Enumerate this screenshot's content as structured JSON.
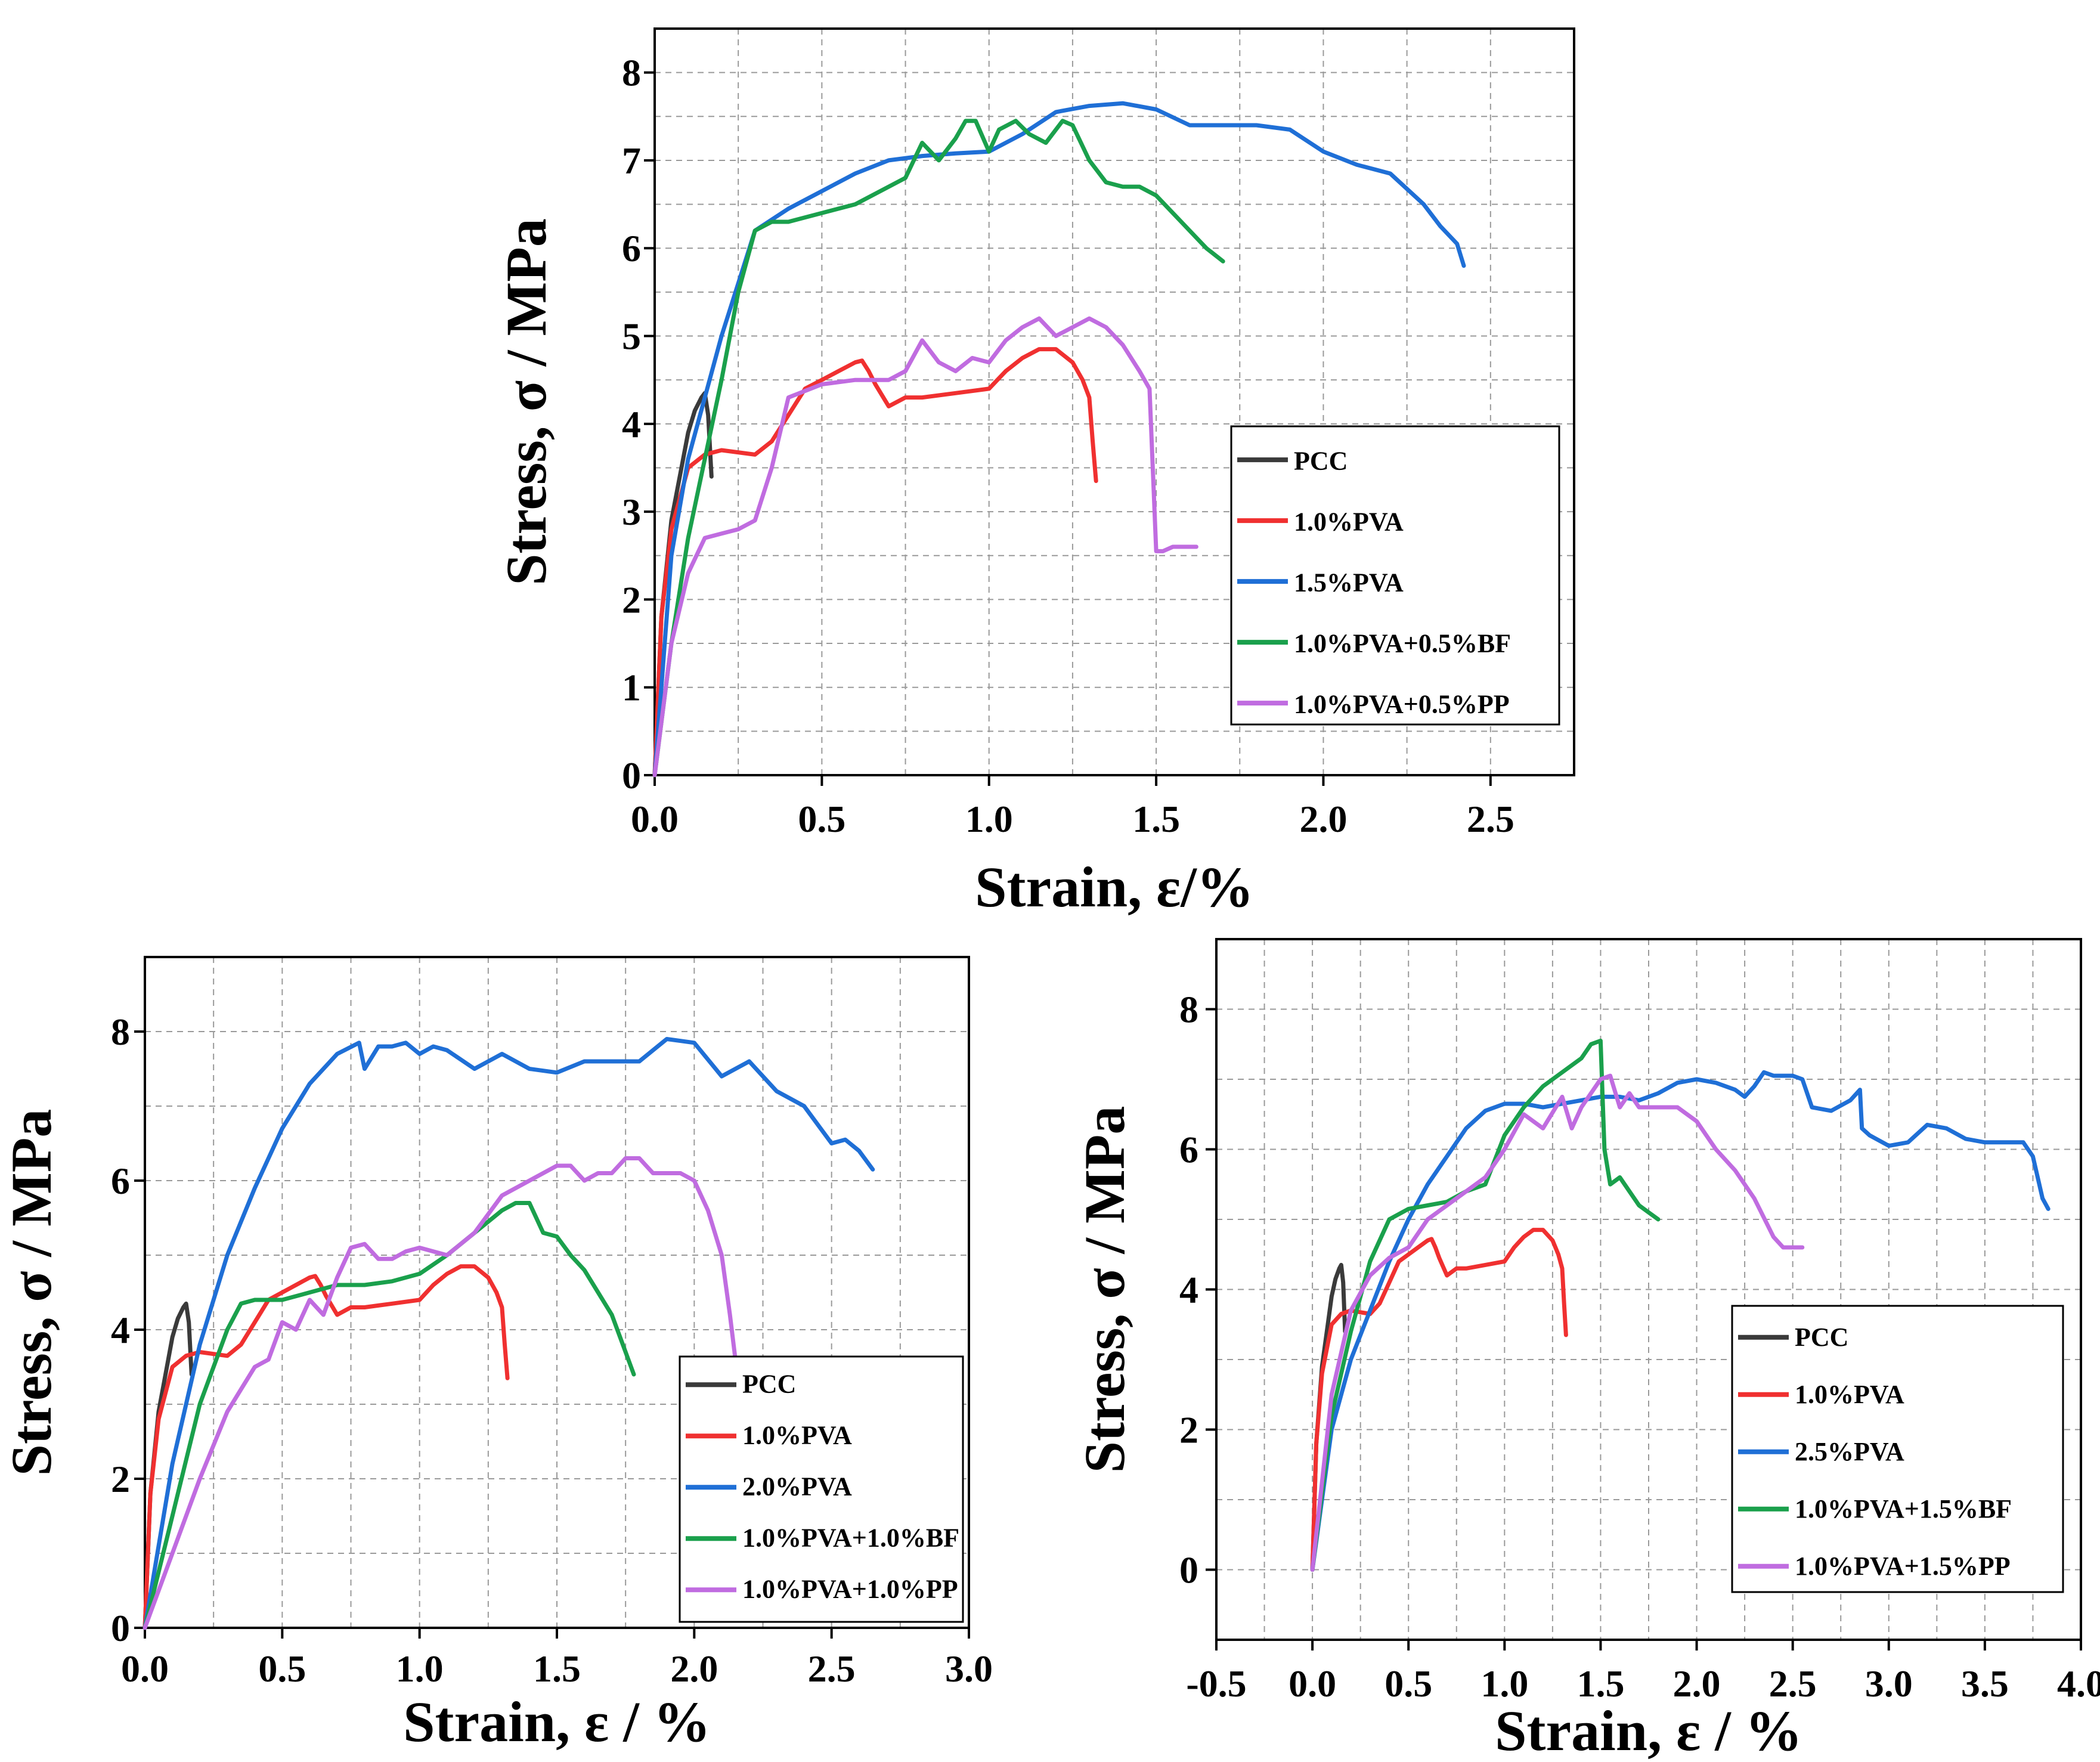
{
  "chart_data": [
    {
      "type": "line",
      "xlabel": "Strain, ε/%",
      "ylabel": "Stress, σ / MPa",
      "xlim": [
        0,
        2.75
      ],
      "ylim": [
        0,
        8.5
      ],
      "xticks": [
        "0.0",
        "0.5",
        "1.0",
        "1.5",
        "2.0",
        "2.5"
      ],
      "yticks": [
        "0",
        "1",
        "2",
        "3",
        "4",
        "5",
        "6",
        "7",
        "8"
      ],
      "grid": true,
      "legend_position": "bottom-right",
      "series": [
        {
          "name": "PCC",
          "color": "#3a3a3a",
          "x": [
            0,
            0.02,
            0.05,
            0.08,
            0.1,
            0.12,
            0.14,
            0.15,
            0.16,
            0.17
          ],
          "y": [
            0,
            1.8,
            2.9,
            3.5,
            3.9,
            4.15,
            4.3,
            4.35,
            4.1,
            3.4
          ]
        },
        {
          "name": "1.0%PVA",
          "color": "#f03030",
          "x": [
            0,
            0.02,
            0.05,
            0.1,
            0.15,
            0.2,
            0.3,
            0.35,
            0.4,
            0.45,
            0.5,
            0.55,
            0.6,
            0.62,
            0.64,
            0.66,
            0.7,
            0.75,
            0.8,
            0.9,
            1.0,
            1.05,
            1.1,
            1.15,
            1.2,
            1.25,
            1.28,
            1.3,
            1.31,
            1.32
          ],
          "y": [
            0,
            1.8,
            2.8,
            3.5,
            3.65,
            3.7,
            3.65,
            3.8,
            4.1,
            4.4,
            4.5,
            4.6,
            4.7,
            4.72,
            4.6,
            4.45,
            4.2,
            4.3,
            4.3,
            4.35,
            4.4,
            4.6,
            4.75,
            4.85,
            4.85,
            4.7,
            4.5,
            4.3,
            3.8,
            3.35
          ]
        },
        {
          "name": "1.5%PVA",
          "color": "#1f6fd6",
          "x": [
            0,
            0.05,
            0.1,
            0.15,
            0.2,
            0.25,
            0.3,
            0.4,
            0.5,
            0.6,
            0.7,
            0.8,
            0.9,
            1.0,
            1.1,
            1.2,
            1.3,
            1.4,
            1.5,
            1.6,
            1.7,
            1.8,
            1.9,
            2.0,
            2.1,
            2.2,
            2.3,
            2.35,
            2.4,
            2.42
          ],
          "y": [
            0,
            2.5,
            3.6,
            4.3,
            5.0,
            5.6,
            6.2,
            6.45,
            6.65,
            6.85,
            7.0,
            7.05,
            7.08,
            7.1,
            7.3,
            7.55,
            7.62,
            7.65,
            7.58,
            7.4,
            7.4,
            7.4,
            7.35,
            7.1,
            6.95,
            6.85,
            6.5,
            6.25,
            6.05,
            5.8
          ]
        },
        {
          "name": "1.0%PVA+0.5%BF",
          "color": "#1aa04c",
          "x": [
            0,
            0.05,
            0.1,
            0.15,
            0.2,
            0.25,
            0.3,
            0.35,
            0.4,
            0.5,
            0.6,
            0.7,
            0.75,
            0.8,
            0.85,
            0.9,
            0.93,
            0.96,
            1.0,
            1.03,
            1.08,
            1.12,
            1.17,
            1.22,
            1.25,
            1.3,
            1.35,
            1.4,
            1.45,
            1.5,
            1.55,
            1.6,
            1.65,
            1.7
          ],
          "y": [
            0,
            1.5,
            2.7,
            3.6,
            4.5,
            5.5,
            6.2,
            6.3,
            6.3,
            6.4,
            6.5,
            6.7,
            6.8,
            7.2,
            7.0,
            7.25,
            7.45,
            7.45,
            7.1,
            7.35,
            7.45,
            7.3,
            7.2,
            7.45,
            7.4,
            7.0,
            6.75,
            6.7,
            6.7,
            6.6,
            6.4,
            6.2,
            6.0,
            5.85
          ]
        },
        {
          "name": "1.0%PVA+0.5%PP",
          "color": "#c06ce0",
          "x": [
            0,
            0.05,
            0.1,
            0.15,
            0.2,
            0.25,
            0.3,
            0.35,
            0.4,
            0.5,
            0.6,
            0.7,
            0.75,
            0.8,
            0.85,
            0.9,
            0.95,
            1.0,
            1.05,
            1.1,
            1.15,
            1.2,
            1.25,
            1.3,
            1.35,
            1.4,
            1.45,
            1.48,
            1.5,
            1.52,
            1.55,
            1.6,
            1.62
          ],
          "y": [
            0,
            1.5,
            2.3,
            2.7,
            2.75,
            2.8,
            2.9,
            3.5,
            4.3,
            4.45,
            4.5,
            4.5,
            4.6,
            4.95,
            4.7,
            4.6,
            4.75,
            4.7,
            4.95,
            5.1,
            5.2,
            5.0,
            5.1,
            5.2,
            5.1,
            4.9,
            4.6,
            4.4,
            2.55,
            2.55,
            2.6,
            2.6,
            2.6
          ]
        }
      ]
    },
    {
      "type": "line",
      "xlabel": "Strain, ε / %",
      "ylabel": "Stress, σ / MPa",
      "xlim": [
        0,
        3
      ],
      "ylim": [
        0,
        9
      ],
      "xticks": [
        "0.0",
        "0.5",
        "1.0",
        "1.5",
        "2.0",
        "2.5",
        "3.0"
      ],
      "yticks": [
        "0",
        "2",
        "4",
        "6",
        "8"
      ],
      "grid": true,
      "legend_position": "bottom-right",
      "series": [
        {
          "name": "PCC",
          "color": "#3a3a3a",
          "x": [
            0,
            0.02,
            0.05,
            0.08,
            0.1,
            0.12,
            0.14,
            0.15,
            0.16,
            0.17
          ],
          "y": [
            0,
            1.8,
            2.9,
            3.5,
            3.9,
            4.15,
            4.3,
            4.35,
            4.1,
            3.4
          ]
        },
        {
          "name": "1.0%PVA",
          "color": "#f03030",
          "x": [
            0,
            0.02,
            0.05,
            0.1,
            0.15,
            0.2,
            0.3,
            0.35,
            0.4,
            0.45,
            0.5,
            0.55,
            0.6,
            0.62,
            0.64,
            0.66,
            0.7,
            0.75,
            0.8,
            0.9,
            1.0,
            1.05,
            1.1,
            1.15,
            1.2,
            1.25,
            1.28,
            1.3,
            1.31,
            1.32
          ],
          "y": [
            0,
            1.8,
            2.8,
            3.5,
            3.65,
            3.7,
            3.65,
            3.8,
            4.1,
            4.4,
            4.5,
            4.6,
            4.7,
            4.72,
            4.6,
            4.45,
            4.2,
            4.3,
            4.3,
            4.35,
            4.4,
            4.6,
            4.75,
            4.85,
            4.85,
            4.7,
            4.5,
            4.3,
            3.8,
            3.35
          ]
        },
        {
          "name": "2.0%PVA",
          "color": "#1f6fd6",
          "x": [
            0,
            0.1,
            0.2,
            0.3,
            0.4,
            0.5,
            0.6,
            0.7,
            0.78,
            0.8,
            0.85,
            0.9,
            0.95,
            1.0,
            1.05,
            1.1,
            1.2,
            1.3,
            1.4,
            1.5,
            1.6,
            1.7,
            1.8,
            1.9,
            2.0,
            2.1,
            2.2,
            2.3,
            2.4,
            2.5,
            2.55,
            2.6,
            2.65
          ],
          "y": [
            0,
            2.2,
            3.8,
            5.0,
            5.9,
            6.7,
            7.3,
            7.7,
            7.85,
            7.5,
            7.8,
            7.8,
            7.85,
            7.7,
            7.8,
            7.75,
            7.5,
            7.7,
            7.5,
            7.45,
            7.6,
            7.6,
            7.6,
            7.9,
            7.85,
            7.4,
            7.6,
            7.2,
            7.0,
            6.5,
            6.55,
            6.4,
            6.15
          ]
        },
        {
          "name": "1.0%PVA+1.0%BF",
          "color": "#1aa04c",
          "x": [
            0,
            0.1,
            0.2,
            0.3,
            0.35,
            0.4,
            0.5,
            0.6,
            0.7,
            0.8,
            0.9,
            1.0,
            1.1,
            1.2,
            1.3,
            1.35,
            1.4,
            1.45,
            1.5,
            1.55,
            1.6,
            1.65,
            1.7,
            1.75,
            1.78
          ],
          "y": [
            0,
            1.5,
            3.0,
            4.0,
            4.35,
            4.4,
            4.4,
            4.5,
            4.6,
            4.6,
            4.65,
            4.75,
            5.0,
            5.3,
            5.6,
            5.7,
            5.7,
            5.3,
            5.25,
            5.0,
            4.8,
            4.5,
            4.2,
            3.7,
            3.4
          ]
        },
        {
          "name": "1.0%PVA+1.0%PP",
          "color": "#c06ce0",
          "x": [
            0,
            0.1,
            0.2,
            0.3,
            0.35,
            0.4,
            0.45,
            0.5,
            0.55,
            0.6,
            0.65,
            0.7,
            0.75,
            0.8,
            0.85,
            0.9,
            0.95,
            1.0,
            1.1,
            1.2,
            1.3,
            1.35,
            1.4,
            1.5,
            1.55,
            1.6,
            1.65,
            1.7,
            1.75,
            1.8,
            1.85,
            1.9,
            1.95,
            2.0,
            2.05,
            2.1,
            2.13,
            2.15
          ],
          "y": [
            0,
            1.0,
            2.0,
            2.9,
            3.2,
            3.5,
            3.6,
            4.1,
            4.0,
            4.4,
            4.2,
            4.7,
            5.1,
            5.15,
            4.95,
            4.95,
            5.05,
            5.1,
            5.0,
            5.3,
            5.8,
            5.9,
            6.0,
            6.2,
            6.2,
            6.0,
            6.1,
            6.1,
            6.3,
            6.3,
            6.1,
            6.1,
            6.1,
            6.0,
            5.6,
            5.0,
            4.2,
            3.6
          ]
        }
      ]
    },
    {
      "type": "line",
      "xlabel": "Strain, ε / %",
      "ylabel": "Stress, σ / MPa",
      "xlim": [
        -0.5,
        4.0
      ],
      "ylim": [
        -1,
        9
      ],
      "xticks": [
        "-0.5",
        "0.0",
        "0.5",
        "1.0",
        "1.5",
        "2.0",
        "2.5",
        "3.0",
        "3.5",
        "4.0"
      ],
      "yticks": [
        "0",
        "2",
        "4",
        "6",
        "8"
      ],
      "grid": true,
      "legend_position": "bottom-right",
      "series": [
        {
          "name": "PCC",
          "color": "#3a3a3a",
          "x": [
            0,
            0.02,
            0.05,
            0.08,
            0.1,
            0.12,
            0.14,
            0.15,
            0.16,
            0.17
          ],
          "y": [
            0,
            1.8,
            2.9,
            3.5,
            3.9,
            4.15,
            4.3,
            4.35,
            4.1,
            3.4
          ]
        },
        {
          "name": "1.0%PVA",
          "color": "#f03030",
          "x": [
            0,
            0.02,
            0.05,
            0.1,
            0.15,
            0.2,
            0.3,
            0.35,
            0.4,
            0.45,
            0.5,
            0.55,
            0.6,
            0.62,
            0.64,
            0.66,
            0.7,
            0.75,
            0.8,
            0.9,
            1.0,
            1.05,
            1.1,
            1.15,
            1.2,
            1.25,
            1.28,
            1.3,
            1.31,
            1.32
          ],
          "y": [
            0,
            1.8,
            2.8,
            3.5,
            3.65,
            3.7,
            3.65,
            3.8,
            4.1,
            4.4,
            4.5,
            4.6,
            4.7,
            4.72,
            4.6,
            4.45,
            4.2,
            4.3,
            4.3,
            4.35,
            4.4,
            4.6,
            4.75,
            4.85,
            4.85,
            4.7,
            4.5,
            4.3,
            3.8,
            3.35
          ]
        },
        {
          "name": "2.5%PVA",
          "color": "#1f6fd6",
          "x": [
            0,
            0.1,
            0.2,
            0.3,
            0.4,
            0.5,
            0.6,
            0.7,
            0.8,
            0.9,
            1.0,
            1.1,
            1.2,
            1.3,
            1.4,
            1.5,
            1.6,
            1.7,
            1.8,
            1.9,
            2.0,
            2.1,
            2.2,
            2.25,
            2.3,
            2.35,
            2.4,
            2.5,
            2.55,
            2.6,
            2.7,
            2.8,
            2.85,
            2.86,
            2.9,
            3.0,
            3.1,
            3.2,
            3.3,
            3.4,
            3.5,
            3.6,
            3.7,
            3.75,
            3.8,
            3.83
          ],
          "y": [
            0,
            2.0,
            3.0,
            3.7,
            4.4,
            5.0,
            5.5,
            5.9,
            6.3,
            6.55,
            6.65,
            6.65,
            6.6,
            6.65,
            6.7,
            6.75,
            6.75,
            6.7,
            6.8,
            6.95,
            7.0,
            6.95,
            6.85,
            6.75,
            6.9,
            7.1,
            7.05,
            7.05,
            7.0,
            6.6,
            6.55,
            6.7,
            6.85,
            6.3,
            6.2,
            6.05,
            6.1,
            6.35,
            6.3,
            6.15,
            6.1,
            6.1,
            6.1,
            5.9,
            5.3,
            5.15
          ]
        },
        {
          "name": "1.0%PVA+1.5%BF",
          "color": "#1aa04c",
          "x": [
            0,
            0.1,
            0.2,
            0.3,
            0.4,
            0.5,
            0.6,
            0.7,
            0.8,
            0.9,
            1.0,
            1.1,
            1.2,
            1.3,
            1.4,
            1.45,
            1.5,
            1.52,
            1.55,
            1.6,
            1.65,
            1.7,
            1.75,
            1.8
          ],
          "y": [
            0,
            2.2,
            3.4,
            4.4,
            5.0,
            5.15,
            5.2,
            5.25,
            5.4,
            5.5,
            6.2,
            6.6,
            6.9,
            7.1,
            7.3,
            7.5,
            7.55,
            6.0,
            5.5,
            5.6,
            5.4,
            5.2,
            5.1,
            5.0
          ]
        },
        {
          "name": "1.0%PVA+1.5%PP",
          "color": "#c06ce0",
          "x": [
            0,
            0.1,
            0.2,
            0.3,
            0.4,
            0.5,
            0.6,
            0.7,
            0.8,
            0.9,
            1.0,
            1.1,
            1.2,
            1.3,
            1.35,
            1.4,
            1.45,
            1.5,
            1.55,
            1.6,
            1.65,
            1.7,
            1.8,
            1.9,
            2.0,
            2.1,
            2.2,
            2.3,
            2.4,
            2.45,
            2.5,
            2.55
          ],
          "y": [
            0,
            2.5,
            3.7,
            4.2,
            4.45,
            4.6,
            5.0,
            5.2,
            5.4,
            5.6,
            6.0,
            6.5,
            6.3,
            6.75,
            6.3,
            6.6,
            6.8,
            7.0,
            7.05,
            6.6,
            6.8,
            6.6,
            6.6,
            6.6,
            6.4,
            6.0,
            5.7,
            5.3,
            4.75,
            4.6,
            4.6,
            4.6
          ]
        }
      ]
    }
  ]
}
